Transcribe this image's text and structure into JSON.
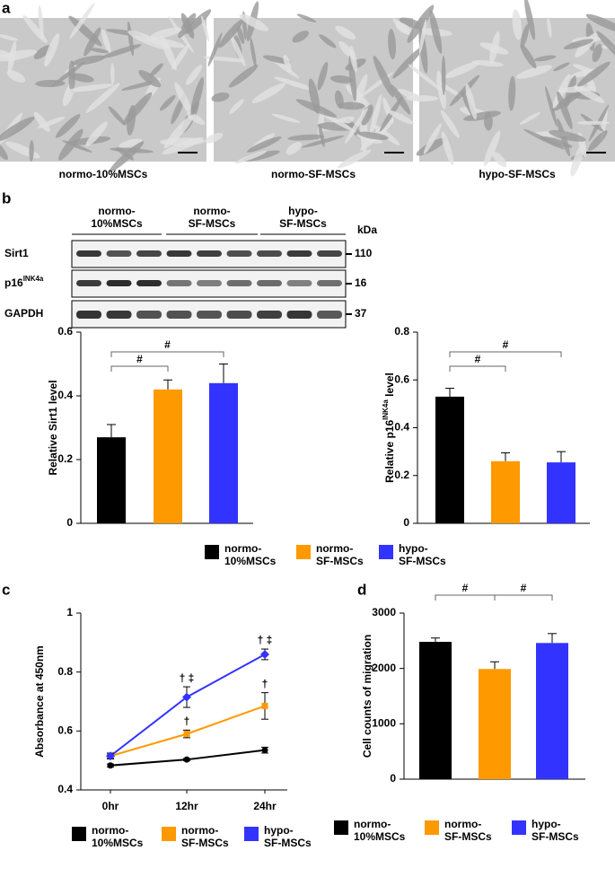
{
  "panel_labels": [
    "a",
    "b",
    "c",
    "d"
  ],
  "micrographs": {
    "captions": [
      "normo-10%MSCs",
      "normo-SF-MSCs",
      "hypo-SF-MSCs"
    ]
  },
  "blot": {
    "groups": [
      "normo-10%MSCs",
      "normo-SF-MSCs",
      "hypo-SF-MSCs"
    ],
    "unit": "kDa",
    "rows": [
      {
        "name": "Sirt1",
        "size": 110
      },
      {
        "name": "p16",
        "sup": "INK4a",
        "size": 16
      },
      {
        "name": "GAPDH",
        "size": 37
      }
    ]
  },
  "chart_data": [
    {
      "type": "bar",
      "ylabel": {
        "text": "Relative Sirt1 level"
      },
      "categories": [
        "normo-10%MSCs",
        "normo-SF-MSCs",
        "hypo-SF-MSCs"
      ],
      "colors": [
        "#000000",
        "#ff9900",
        "#3333ff"
      ],
      "values": [
        0.27,
        0.42,
        0.44
      ],
      "errors": [
        0.04,
        0.03,
        0.06
      ],
      "ylim": [
        0,
        0.6
      ],
      "yticks": [
        0,
        0.2,
        0.4,
        0.6
      ],
      "brackets": [
        {
          "label": "#",
          "between": [
            0,
            1
          ]
        },
        {
          "label": "#",
          "between": [
            0,
            2
          ]
        }
      ]
    },
    {
      "type": "bar",
      "ylabel": {
        "text": "Relative p16",
        "sup": "INK4a",
        "after": " level"
      },
      "colors": [
        "#000000",
        "#ff9900",
        "#3333ff"
      ],
      "values": [
        0.53,
        0.26,
        0.255
      ],
      "errors": [
        0.035,
        0.035,
        0.045
      ],
      "ylim": [
        0,
        0.8
      ],
      "yticks": [
        0,
        0.2,
        0.4,
        0.6,
        0.8
      ],
      "brackets": [
        {
          "label": "#",
          "between": [
            0,
            1
          ]
        },
        {
          "label": "#",
          "between": [
            0,
            2
          ]
        }
      ]
    },
    {
      "type": "line",
      "ylabel": {
        "text": "Absorbance at 450nm"
      },
      "categories": [
        "0hr",
        "12hr",
        "24hr"
      ],
      "series": [
        {
          "name": "normo-10%MSCs",
          "color": "#000000",
          "marker": "circle",
          "values": [
            0.483,
            0.503,
            0.535
          ],
          "errors": [
            0.005,
            0.004,
            0.01
          ],
          "markers": [
            null,
            null,
            null
          ]
        },
        {
          "name": "normo-SF-MSCs",
          "color": "#ff9900",
          "marker": "square",
          "values": [
            0.515,
            0.59,
            0.685
          ],
          "errors": [
            0.007,
            0.013,
            0.045
          ],
          "markers": [
            null,
            "†",
            "†"
          ]
        },
        {
          "name": "hypo-SF-MSCs",
          "color": "#3333ff",
          "marker": "diamond",
          "values": [
            0.515,
            0.715,
            0.86
          ],
          "errors": [
            0.01,
            0.035,
            0.018
          ],
          "markers": [
            null,
            "† ‡",
            "† ‡"
          ]
        }
      ],
      "ylim": [
        0.4,
        1
      ],
      "yticks": [
        0.4,
        0.6,
        0.8,
        1
      ]
    },
    {
      "type": "bar",
      "ylabel": {
        "text": "Cell counts of migration"
      },
      "categories": [
        "normo-10%MSCs",
        "normo-SF-MSCs",
        "hypo-SF-MSCs"
      ],
      "colors": [
        "#000000",
        "#ff9900",
        "#3333ff"
      ],
      "values": [
        2480,
        1990,
        2460
      ],
      "errors": [
        70,
        130,
        170
      ],
      "ylim": [
        0,
        3000
      ],
      "yticks": [
        0,
        1000,
        2000,
        3000
      ],
      "brackets": [
        {
          "label": "#",
          "between": [
            0,
            1
          ]
        },
        {
          "label": "#",
          "between": [
            1,
            2
          ]
        }
      ]
    }
  ]
}
